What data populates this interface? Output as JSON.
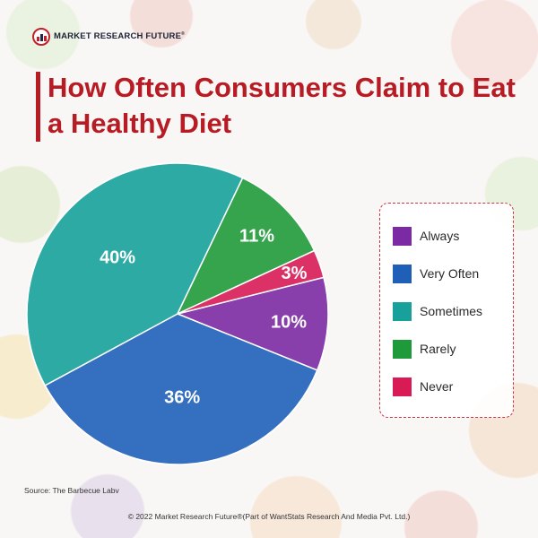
{
  "brand": {
    "name": "MARKET RESEARCH FUTURE",
    "mark": "®"
  },
  "title": "How Often Consumers Claim to Eat a Healthy Diet",
  "chart_data": {
    "type": "pie",
    "title": "How Often Consumers Claim to Eat a Healthy Diet",
    "slices": [
      {
        "label": "Always",
        "value": 10,
        "display": "10%",
        "color": "#7b2aa3"
      },
      {
        "label": "Very Often",
        "value": 36,
        "display": "36%",
        "color": "#1f5fb8"
      },
      {
        "label": "Sometimes",
        "value": 40,
        "display": "40%",
        "color": "#17a19a"
      },
      {
        "label": "Rarely",
        "value": 11,
        "display": "11%",
        "color": "#1f9a3a"
      },
      {
        "label": "Never",
        "value": 3,
        "display": "3%",
        "color": "#d81b55"
      }
    ],
    "legend_position": "right"
  },
  "source": "Source: The Barbecue Labv",
  "footer": "© 2022 Market Research Future®(Part of WantStats Research And Media Pvt. Ltd.)"
}
